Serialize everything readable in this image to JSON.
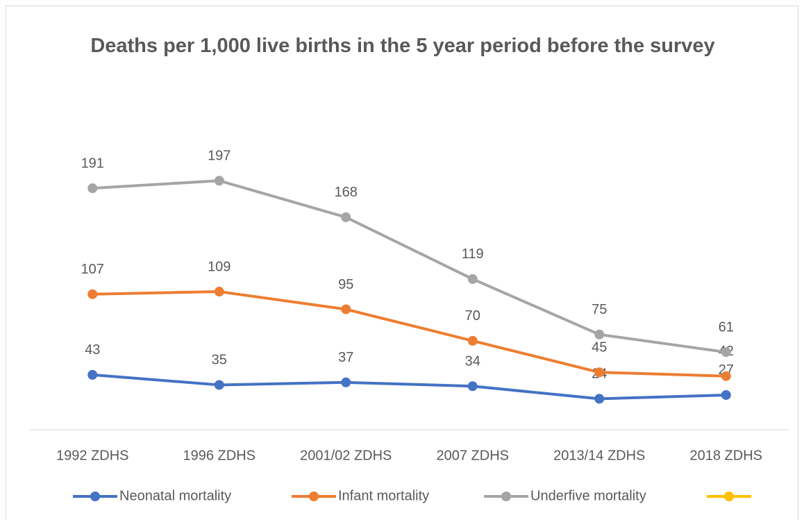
{
  "chart_data": {
    "type": "line",
    "title": "Deaths per 1,000 live births in the 5 year period before the survey",
    "categories": [
      "1992 ZDHS",
      "1996 ZDHS",
      "2001/02 ZDHS",
      "2007 ZDHS",
      "2013/14 ZDHS",
      "2018 ZDHS"
    ],
    "series": [
      {
        "name": "Neonatal mortality",
        "color": "#4472c4",
        "values": [
          43,
          35,
          37,
          34,
          24,
          27
        ]
      },
      {
        "name": "Infant mortality",
        "color": "#ed7d31",
        "values": [
          107,
          109,
          95,
          70,
          45,
          42
        ]
      },
      {
        "name": "Underfive mortality",
        "color": "#a5a5a5",
        "values": [
          191,
          197,
          168,
          119,
          75,
          61
        ]
      },
      {
        "color": "#ffc000",
        "values": [
          null,
          null,
          null,
          null,
          null,
          null
        ]
      }
    ],
    "ylim": [
      0,
      250
    ],
    "legend": "bottom",
    "data_labels": true
  }
}
